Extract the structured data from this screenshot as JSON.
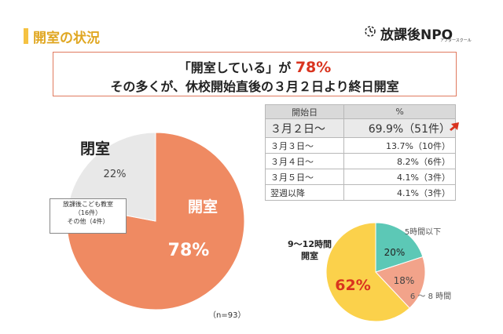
{
  "header": {
    "title": "開室の状況",
    "logo_text": "放課後NPO",
    "logo_sub": "アフタースクール"
  },
  "callout": {
    "line1_prefix": "「開室している」が",
    "line1_value": "78%",
    "line2": "その多くが、休校開始直後の３月２日より終日開室"
  },
  "table": {
    "headers": [
      "開始日",
      "%"
    ],
    "rows": [
      {
        "label": "３月２日～",
        "value": "69.9%（51件）"
      },
      {
        "label": "３月３日～",
        "value": "13.7%（10件）"
      },
      {
        "label": "３月４日～",
        "value": "8.2%（6件）"
      },
      {
        "label": "３月５日～",
        "value": "4.1%（3件）"
      },
      {
        "label": "翌週以降",
        "value": "4.1%（3件）"
      }
    ]
  },
  "note": {
    "line1": "放課後こども教室",
    "line2": "（16件）",
    "line3": "その他（4件）"
  },
  "n_label": "（n=93）",
  "colors": {
    "open": "#ef8a62",
    "closed": "#e8e8e8",
    "yellow": "#fbd14b",
    "teal": "#5cc8b6",
    "salmon": "#f2a38a",
    "accent_red": "#d9341f"
  },
  "chart_data": [
    {
      "type": "pie",
      "slices": [
        {
          "label": "開室",
          "value": 78,
          "display": "78%"
        },
        {
          "label": "閉室",
          "value": 22,
          "display": "22%"
        }
      ]
    },
    {
      "type": "pie",
      "slices": [
        {
          "label": "9～12時間\n開室",
          "value": 62,
          "display": "62%"
        },
        {
          "label": "5時間以下",
          "value": 20,
          "display": "20%"
        },
        {
          "label": "6 ～ 8 時間",
          "value": 18,
          "display": "18%"
        }
      ]
    }
  ]
}
